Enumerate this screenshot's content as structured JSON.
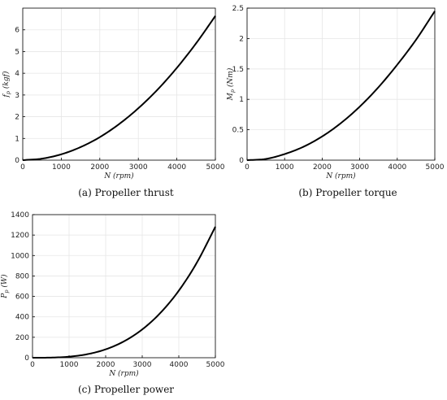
{
  "chart_data": [
    {
      "type": "line",
      "caption": "(a)  Propeller thrust",
      "xlabel": "N (rpm)",
      "ylabel": "f_p (kgf)",
      "xlim": [
        0,
        5000
      ],
      "ylim": [
        0,
        7
      ],
      "xticks": [
        0,
        1000,
        2000,
        3000,
        4000,
        5000
      ],
      "yticks": [
        0,
        1,
        2,
        3,
        4,
        5,
        6
      ],
      "grid": true,
      "series": [
        {
          "x": [
            0,
            500,
            1000,
            1500,
            2000,
            2500,
            3000,
            3500,
            4000,
            4500,
            5000
          ],
          "y": [
            0,
            0.07,
            0.27,
            0.6,
            1.06,
            1.66,
            2.39,
            3.25,
            4.25,
            5.38,
            6.64
          ]
        }
      ]
    },
    {
      "type": "line",
      "caption": "(b)  Propeller torque",
      "xlabel": "N (rpm)",
      "ylabel": "M_p (Nm)",
      "xlim": [
        0,
        5000
      ],
      "ylim": [
        0,
        2.5
      ],
      "xticks": [
        0,
        1000,
        2000,
        3000,
        4000,
        5000
      ],
      "yticks": [
        0,
        0.5,
        1,
        1.5,
        2,
        2.5
      ],
      "grid": true,
      "series": [
        {
          "x": [
            0,
            500,
            1000,
            1500,
            2000,
            2500,
            3000,
            3500,
            4000,
            4500,
            5000
          ],
          "y": [
            0,
            0.02,
            0.1,
            0.22,
            0.39,
            0.61,
            0.88,
            1.2,
            1.57,
            1.98,
            2.45
          ]
        }
      ]
    },
    {
      "type": "line",
      "caption": "(c)  Propeller power",
      "xlabel": "N (rpm)",
      "ylabel": "P_p (W)",
      "xlim": [
        0,
        5000
      ],
      "ylim": [
        0,
        1400
      ],
      "xticks": [
        0,
        1000,
        2000,
        3000,
        4000,
        5000
      ],
      "yticks": [
        0,
        200,
        400,
        600,
        800,
        1000,
        1200,
        1400
      ],
      "grid": true,
      "series": [
        {
          "x": [
            0,
            500,
            1000,
            1500,
            2000,
            2500,
            3000,
            3500,
            4000,
            4500,
            5000
          ],
          "y": [
            0,
            1.3,
            10.3,
            34.6,
            82,
            160.2,
            276.8,
            439.6,
            656.1,
            934.3,
            1281.6
          ]
        }
      ]
    }
  ]
}
